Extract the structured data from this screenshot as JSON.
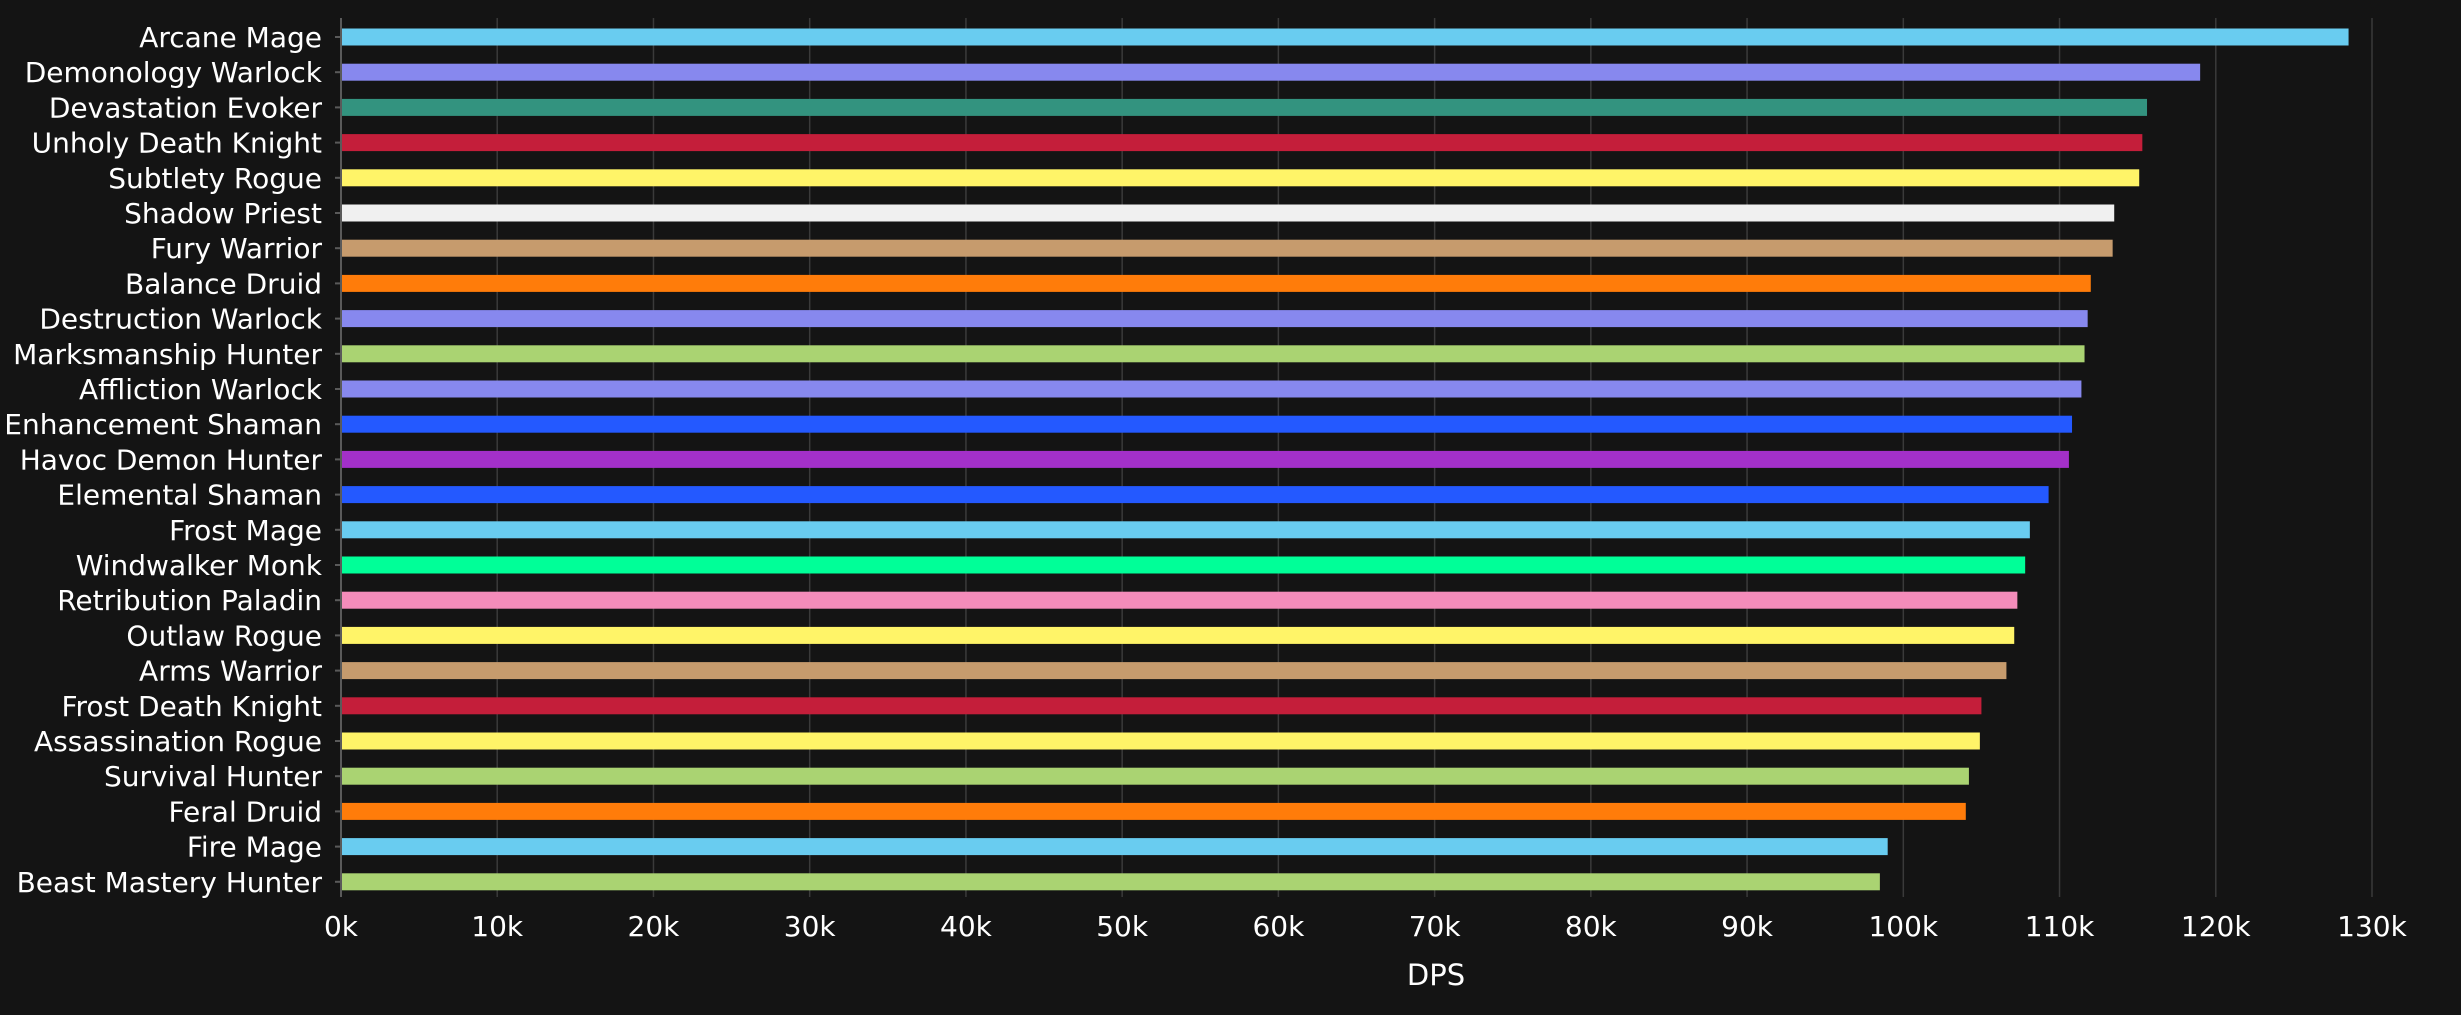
{
  "chart_data": {
    "type": "bar",
    "orientation": "horizontal",
    "title": "",
    "xlabel": "DPS",
    "ylabel": "",
    "xlim": [
      0,
      130000
    ],
    "x_ticks": [
      0,
      10000,
      20000,
      30000,
      40000,
      50000,
      60000,
      70000,
      80000,
      90000,
      100000,
      110000,
      120000,
      130000
    ],
    "x_tick_labels": [
      "0k",
      "10k",
      "20k",
      "30k",
      "40k",
      "50k",
      "60k",
      "70k",
      "80k",
      "90k",
      "100k",
      "110k",
      "120k",
      "130k"
    ],
    "grid": "vertical",
    "legend": "none",
    "categories": [
      "Arcane Mage",
      "Demonology Warlock",
      "Devastation Evoker",
      "Unholy Death Knight",
      "Subtlety Rogue",
      "Shadow Priest",
      "Fury Warrior",
      "Balance Druid",
      "Destruction Warlock",
      "Marksmanship Hunter",
      "Affliction Warlock",
      "Enhancement Shaman",
      "Havoc Demon Hunter",
      "Elemental Shaman",
      "Frost Mage",
      "Windwalker Monk",
      "Retribution Paladin",
      "Outlaw Rogue",
      "Arms Warrior",
      "Frost Death Knight",
      "Assassination Rogue",
      "Survival Hunter",
      "Feral Druid",
      "Fire Mage",
      "Beast Mastery Hunter"
    ],
    "values": [
      128500,
      119000,
      115600,
      115300,
      115100,
      113500,
      113400,
      112000,
      111800,
      111600,
      111400,
      110800,
      110600,
      109300,
      108100,
      107800,
      107300,
      107100,
      106600,
      105000,
      104900,
      104200,
      104000,
      99000,
      98500
    ],
    "colors": [
      "#69ccf0",
      "#8788ee",
      "#33937f",
      "#c41e3a",
      "#fff468",
      "#f0f0f0",
      "#c69b6d",
      "#ff7c0a",
      "#8788ee",
      "#aad372",
      "#8788ee",
      "#2459ff",
      "#a330c9",
      "#2459ff",
      "#69ccf0",
      "#00ff98",
      "#f48cba",
      "#fff468",
      "#c69b6d",
      "#c41e3a",
      "#fff468",
      "#aad372",
      "#ff7c0a",
      "#69ccf0",
      "#aad372"
    ]
  },
  "theme": {
    "background": "#141414",
    "grid_color": "#3a3a3a",
    "axis_color": "#5a5a5a",
    "text_color": "#ffffff"
  }
}
